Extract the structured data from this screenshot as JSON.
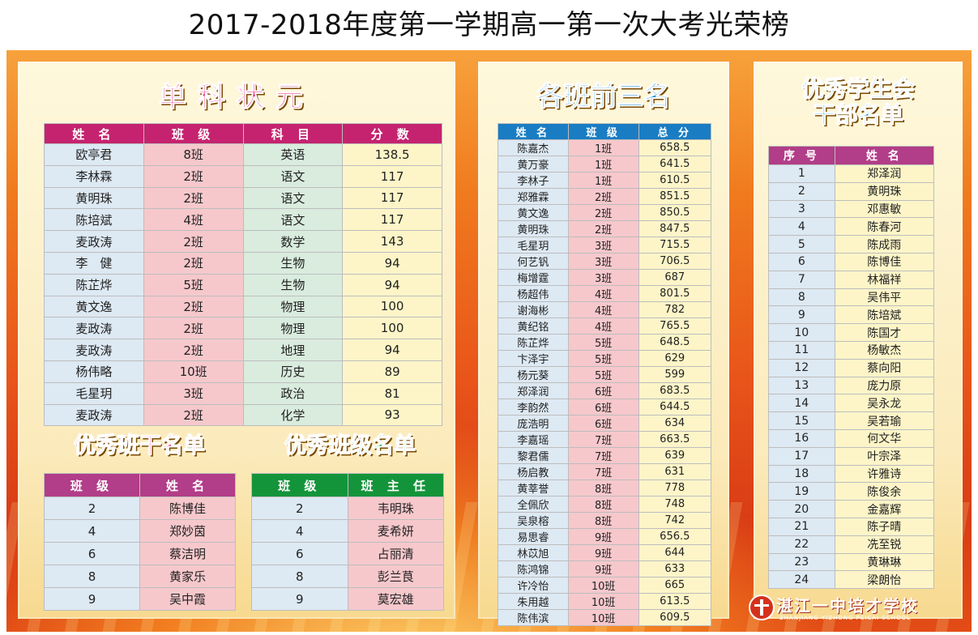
{
  "title": "2017-2018年度第一学期高一第一次大考光荣榜",
  "single_subject": {
    "title": "单科状元",
    "headers": [
      "姓 名",
      "班 级",
      "科 目",
      "分 数"
    ],
    "rows": [
      [
        "欧亭君",
        "8班",
        "英语",
        "138.5"
      ],
      [
        "李林霖",
        "2班",
        "语文",
        "117"
      ],
      [
        "黄明珠",
        "2班",
        "语文",
        "117"
      ],
      [
        "陈培斌",
        "4班",
        "语文",
        "117"
      ],
      [
        "麦政涛",
        "2班",
        "数学",
        "143"
      ],
      [
        "李　健",
        "2班",
        "生物",
        "94"
      ],
      [
        "陈芷烨",
        "5班",
        "生物",
        "94"
      ],
      [
        "黄文逸",
        "2班",
        "物理",
        "100"
      ],
      [
        "麦政涛",
        "2班",
        "物理",
        "100"
      ],
      [
        "麦政涛",
        "2班",
        "地理",
        "94"
      ],
      [
        "杨伟略",
        "10班",
        "历史",
        "89"
      ],
      [
        "毛星玥",
        "3班",
        "政治",
        "81"
      ],
      [
        "麦政涛",
        "2班",
        "化学",
        "93"
      ]
    ]
  },
  "cadre_list": {
    "title": "优秀班干名单",
    "headers": [
      "班 级",
      "姓 名"
    ],
    "rows": [
      [
        "2",
        "陈博佳"
      ],
      [
        "4",
        "郑妙茵"
      ],
      [
        "6",
        "蔡洁明"
      ],
      [
        "8",
        "黄家乐"
      ],
      [
        "9",
        "吴中霞"
      ]
    ]
  },
  "class_list": {
    "title": "优秀班级名单",
    "headers": [
      "班 级",
      "班 主 任"
    ],
    "rows": [
      [
        "2",
        "韦明珠"
      ],
      [
        "4",
        "麦希妍"
      ],
      [
        "6",
        "占丽清"
      ],
      [
        "8",
        "彭兰茛"
      ],
      [
        "9",
        "莫宏雄"
      ]
    ]
  },
  "top_three": {
    "title": "各班前三名",
    "headers": [
      "姓 名",
      "班 级",
      "总 分"
    ],
    "rows": [
      [
        "陈嘉杰",
        "1班",
        "658.5"
      ],
      [
        "黄万豪",
        "1班",
        "641.5"
      ],
      [
        "李林子",
        "1班",
        "610.5"
      ],
      [
        "郑雅霖",
        "2班",
        "851.5"
      ],
      [
        "黄文逸",
        "2班",
        "850.5"
      ],
      [
        "黄明珠",
        "2班",
        "847.5"
      ],
      [
        "毛星玥",
        "3班",
        "715.5"
      ],
      [
        "何艺钒",
        "3班",
        "706.5"
      ],
      [
        "梅增霆",
        "3班",
        "687"
      ],
      [
        "杨超伟",
        "4班",
        "801.5"
      ],
      [
        "谢海彬",
        "4班",
        "782"
      ],
      [
        "黄纪铭",
        "4班",
        "765.5"
      ],
      [
        "陈芷烨",
        "5班",
        "648.5"
      ],
      [
        "卞泽宇",
        "5班",
        "629"
      ],
      [
        "杨元葵",
        "5班",
        "599"
      ],
      [
        "郑泽润",
        "6班",
        "683.5"
      ],
      [
        "李韵然",
        "6班",
        "644.5"
      ],
      [
        "庞浩明",
        "6班",
        "634"
      ],
      [
        "李嘉瑶",
        "7班",
        "663.5"
      ],
      [
        "黎君儒",
        "7班",
        "639"
      ],
      [
        "杨启教",
        "7班",
        "631"
      ],
      [
        "黄莘誉",
        "8班",
        "778"
      ],
      [
        "全佩欣",
        "8班",
        "748"
      ],
      [
        "吴泉榕",
        "8班",
        "742"
      ],
      [
        "易思睿",
        "9班",
        "656.5"
      ],
      [
        "林苡旭",
        "9班",
        "644"
      ],
      [
        "陈鸿锦",
        "9班",
        "633"
      ],
      [
        "许冷怡",
        "10班",
        "665"
      ],
      [
        "朱用越",
        "10班",
        "613.5"
      ],
      [
        "陈伟滨",
        "10班",
        "609.5"
      ]
    ]
  },
  "student_union": {
    "title_line1": "优秀学生会",
    "title_line2": "干部名单",
    "headers": [
      "序 号",
      "姓 名"
    ],
    "rows": [
      [
        "1",
        "郑泽润"
      ],
      [
        "2",
        "黄明珠"
      ],
      [
        "3",
        "邓惠敏"
      ],
      [
        "4",
        "陈春河"
      ],
      [
        "5",
        "陈成雨"
      ],
      [
        "6",
        "陈博佳"
      ],
      [
        "7",
        "林福祥"
      ],
      [
        "8",
        "吴伟平"
      ],
      [
        "9",
        "陈培斌"
      ],
      [
        "10",
        "陈国才"
      ],
      [
        "11",
        "杨敏杰"
      ],
      [
        "12",
        "蔡向阳"
      ],
      [
        "13",
        "庞力原"
      ],
      [
        "14",
        "吴永龙"
      ],
      [
        "15",
        "吴若瑜"
      ],
      [
        "16",
        "何文华"
      ],
      [
        "17",
        "叶宗泽"
      ],
      [
        "18",
        "许雅诗"
      ],
      [
        "19",
        "陈俊余"
      ],
      [
        "20",
        "金嘉辉"
      ],
      [
        "21",
        "陈子晴"
      ],
      [
        "22",
        "冼至锐"
      ],
      [
        "23",
        "黄琳琳"
      ],
      [
        "24",
        "梁朗怡"
      ]
    ]
  },
  "school_logo": {
    "name_cn": "湛江一中培才学校",
    "name_en": "ZHANJIANG YIZHONG PEICAI SCHOOL",
    "icon": "school-emblem-icon"
  },
  "colors": {
    "board_orange": "#f07a1e",
    "pink_header": "#c5236f",
    "blue_header": "#1a7dc3",
    "green_header": "#14943a",
    "title_pink": "#e3207a",
    "title_blue": "#1a86d1"
  }
}
